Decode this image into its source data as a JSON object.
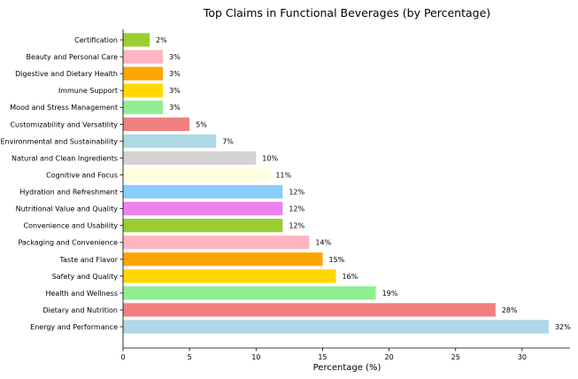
{
  "chart_data": {
    "type": "bar",
    "orientation": "horizontal",
    "title": "Top Claims in Functional Beverages (by Percentage)",
    "xlabel": "Percentage (%)",
    "ylabel": "",
    "xlim": [
      0,
      33.6
    ],
    "xticks": [
      0,
      5,
      10,
      15,
      20,
      25,
      30
    ],
    "grid": false,
    "categories": [
      "Energy and Performance",
      "Dietary and Nutrition",
      "Health and Wellness",
      "Safety and Quality",
      "Taste and Flavor",
      "Packaging and Convenience",
      "Convenience and Usability",
      "Nutritional Value and Quality",
      "Hydration and Refreshment",
      "Cognitive and Focus",
      "Natural and Clean Ingredients",
      "Environmental and Sustainability",
      "Customizability and Versatility",
      "Mood and Stress Management",
      "Immune Support",
      "Digestive and Dietary Health",
      "Beauty and Personal Care",
      "Certification"
    ],
    "values": [
      32,
      28,
      19,
      16,
      15,
      14,
      12,
      12,
      12,
      11,
      10,
      7,
      5,
      3,
      3,
      3,
      3,
      2
    ],
    "value_labels": [
      "32%",
      "28%",
      "19%",
      "16%",
      "15%",
      "14%",
      "12%",
      "12%",
      "12%",
      "11%",
      "10%",
      "7%",
      "5%",
      "3%",
      "3%",
      "3%",
      "3%",
      "2%"
    ],
    "colors": [
      "#add8e6",
      "#f08080",
      "#90ee90",
      "#ffd700",
      "#ffa500",
      "#ffb6c1",
      "#9acd32",
      "#ee82ee",
      "#87cefa",
      "#ffffe0",
      "#d3d3d3",
      "#add8e6",
      "#f08080",
      "#90ee90",
      "#ffd700",
      "#ffa500",
      "#ffb6c1",
      "#9acd32"
    ]
  }
}
